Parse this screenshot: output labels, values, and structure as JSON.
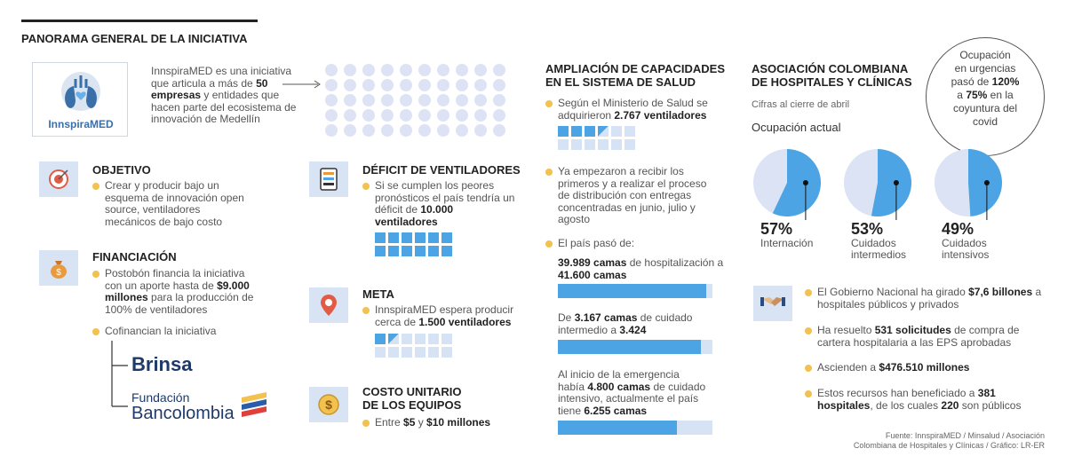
{
  "header": {
    "title": "PANORAMA GENERAL DE LA INICIATIVA"
  },
  "logo": {
    "text": "InnspiraMED"
  },
  "intro": {
    "pre": "InnspiraMED es una iniciativa que articula a más de ",
    "b1": "50 empresas",
    "post": " y entidades que hacen parte del ecosistema de innovación de Medellín"
  },
  "objetivo": {
    "title": "OBJETIVO",
    "text": "Crear y producir bajo un esquema de innovación open source, ventiladores mecánicos de bajo costo"
  },
  "financiacion": {
    "title": "FINANCIACIÓN",
    "text_pre": "Postobón financia la iniciativa con un aporte hasta de ",
    "text_b": "$9.000 millones",
    "text_post": " para la producción de 100% de ventiladores",
    "cofin": "Cofinancian la iniciativa",
    "brinsa": "Brinsa",
    "fundacion": "Fundación",
    "bancolombia": "Bancolombia"
  },
  "deficit": {
    "title": "DÉFICIT DE VENTILADORES",
    "pre": "Si se cumplen los peores pronósticos el país tendría un déficit de ",
    "b": "10.000 ventiladores"
  },
  "meta": {
    "title": "META",
    "pre": "InnspiraMED espera producir cerca de ",
    "b": "1.500 ventiladores"
  },
  "costo": {
    "title1": "COSTO UNITARIO",
    "title2": "DE LOS EQUIPOS",
    "pre": "Entre ",
    "b1": "$5",
    "mid": " y ",
    "b2": "$10 millones"
  },
  "ampliacion": {
    "title1": "AMPLIACIÓN DE CAPACIDADES",
    "title2": "EN EL SISTEMA DE SALUD",
    "p1_pre": "Según el Ministerio de Salud se adquirieron ",
    "p1_b": "2.767 ventiladores",
    "p2": "Ya empezaron a recibir los primeros y a realizar el proceso de distribución con entregas concentradas en junio, julio y agosto",
    "p3": "El país pasó de:",
    "bars": [
      {
        "pre": "",
        "b1": "39.989 camas",
        "mid": " de hospitalización a ",
        "b2": "41.600 camas",
        "from": 39989,
        "to": 41600
      },
      {
        "pre": "De ",
        "b1": "3.167 camas",
        "mid": " de cuidado intermedio a ",
        "b2": "3.424",
        "from": 3167,
        "to": 3424
      },
      {
        "pre": "Al inicio de la emergencia había ",
        "b1": "4.800 camas",
        "mid": " de cuidado intensivo, actualmente el país tiene ",
        "b2": "6.255 camas",
        "from": 4800,
        "to": 6255
      }
    ]
  },
  "asociacion": {
    "title1": "ASOCIACIÓN COLOMBIANA",
    "title2": "DE HOSPITALES Y CLÍNICAS",
    "cifras": "Cifras al cierre de abril",
    "ocupacion": "Ocupación actual",
    "pies": [
      {
        "pct": 57,
        "label": "57%",
        "name1": "Internación",
        "name2": ""
      },
      {
        "pct": 53,
        "label": "53%",
        "name1": "Cuidados",
        "name2": "intermedios"
      },
      {
        "pct": 49,
        "label": "49%",
        "name1": "Cuidados",
        "name2": "intensivos"
      }
    ],
    "bubble": {
      "l1": "Ocupación",
      "l2": "en urgencias",
      "l3_pre": "pasó de ",
      "l3_b": "120%",
      "l4_pre": "a ",
      "l4_b": "75%",
      "l4_post": " en la",
      "l5": "coyuntura del",
      "l6": "covid"
    },
    "facts": [
      {
        "pre": "El Gobierno Nacional ha girado ",
        "b": "$7,6 billones",
        "post": " a hospitales públicos y privados"
      },
      {
        "pre": "Ha resuelto ",
        "b": "531 solicitudes",
        "post": " de compra de cartera hospitalaria a las EPS aprobadas"
      },
      {
        "pre": "Ascienden a ",
        "b": "$476.510 millones",
        "post": ""
      },
      {
        "pre": "Estos recursos han beneficiado a ",
        "b": "381 hospitales",
        "post": ", de los cuales ",
        "b2": "220",
        "post2": " son públicos"
      }
    ]
  },
  "fuente": {
    "l1": "Fuente: InnspiraMED / Minsalud / Asociación",
    "l2": "Colombiana de Hospitales y Clínicas / Gráfico: LR-ER"
  },
  "colors": {
    "accent": "#4ca4e4",
    "light": "#d6e3f5",
    "bullet": "#f2c14e",
    "logo_blue": "#3a6fa8"
  }
}
